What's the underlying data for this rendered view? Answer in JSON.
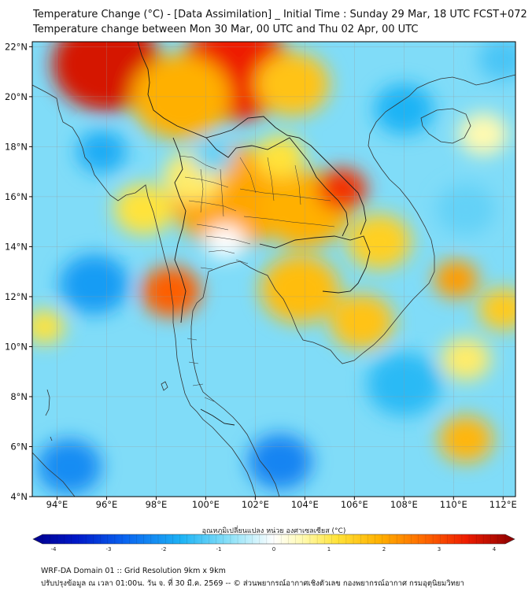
{
  "header": {
    "title_line1": "Temperature Change (°C) - [Data Assimilation] _ Initial Time : Sunday 29 Mar, 18 UTC FCST+072",
    "title_line2": "Temperature change between Mon 30 Mar, 00 UTC and Thu 02 Apr, 00 UTC"
  },
  "footer": {
    "line1": "WRF-DA Domain 01 :: Grid Resolution 9km x 9km",
    "line2": "ปรับปรุงข้อมูล ณ เวลา 01:00น. วัน จ. ที่ 30 มี.ค. 2569 -- © ส่วนพยากรณ์อากาศเชิงตัวเลข กองพยากรณ์อากาศ กรมอุตุนิยมวิทยา"
  },
  "colors": {
    "coast": "#333333",
    "border": "#1a1a1a",
    "grid": "#999999"
  },
  "chart_data": {
    "type": "heatmap",
    "title": "Temperature Change (°C) - [Data Assimilation] _ Initial Time : Sunday 29 Mar, 18 UTC FCST+072",
    "subtitle": "Temperature change between Mon 30 Mar, 00 UTC and Thu 02 Apr, 00 UTC",
    "x_range_lon": [
      93,
      112.5
    ],
    "y_range_lat": [
      4,
      22.2
    ],
    "x_ticks": [
      94,
      96,
      98,
      100,
      102,
      104,
      106,
      108,
      110,
      112
    ],
    "x_tick_labels": [
      "94°E",
      "96°E",
      "98°E",
      "100°E",
      "102°E",
      "104°E",
      "106°E",
      "108°E",
      "110°E",
      "112°E"
    ],
    "y_ticks": [
      4,
      6,
      8,
      10,
      12,
      14,
      16,
      18,
      20,
      22
    ],
    "y_tick_labels": [
      "4°N",
      "6°N",
      "8°N",
      "10°N",
      "12°N",
      "14°N",
      "16°N",
      "18°N",
      "20°N",
      "22°N"
    ],
    "grid": true,
    "colorbar": {
      "label": "อุณหภูมิเปลี่ยนแปลง หน่วย องศาเซลเซียส (°C)",
      "min": -4,
      "max": 4,
      "ticks": [
        -4,
        -3,
        -2,
        -1,
        0,
        1,
        2,
        3,
        4
      ],
      "tick_labels": [
        "-4",
        "-3",
        "-2",
        "-1",
        "0",
        "1",
        "2",
        "3",
        "4"
      ],
      "extend": "both"
    },
    "background_value": -0.8,
    "anomalies": [
      {
        "lon": 96.0,
        "lat": 21.3,
        "value": 3.4,
        "radius_deg": 2.2
      },
      {
        "lon": 101.2,
        "lat": 21.0,
        "value": 3.2,
        "radius_deg": 2.3
      },
      {
        "lon": 99.0,
        "lat": 20.0,
        "value": 1.8,
        "radius_deg": 2.0
      },
      {
        "lon": 103.5,
        "lat": 20.5,
        "value": 1.5,
        "radius_deg": 1.5
      },
      {
        "lon": 101.0,
        "lat": 16.0,
        "value": 1.9,
        "radius_deg": 2.4
      },
      {
        "lon": 104.0,
        "lat": 15.5,
        "value": 1.8,
        "radius_deg": 1.8
      },
      {
        "lon": 105.5,
        "lat": 16.3,
        "value": 3.0,
        "radius_deg": 1.0
      },
      {
        "lon": 103.0,
        "lat": 17.6,
        "value": 1.0,
        "radius_deg": 1.0
      },
      {
        "lon": 99.5,
        "lat": 16.8,
        "value": 0.8,
        "radius_deg": 1.2
      },
      {
        "lon": 97.5,
        "lat": 15.5,
        "value": 1.0,
        "radius_deg": 1.2
      },
      {
        "lon": 98.6,
        "lat": 12.2,
        "value": 2.6,
        "radius_deg": 1.2
      },
      {
        "lon": 103.8,
        "lat": 12.3,
        "value": 1.6,
        "radius_deg": 1.6
      },
      {
        "lon": 106.3,
        "lat": 11.0,
        "value": 1.5,
        "radius_deg": 1.3
      },
      {
        "lon": 107.0,
        "lat": 14.2,
        "value": 1.3,
        "radius_deg": 1.3
      },
      {
        "lon": 110.1,
        "lat": 12.7,
        "value": 2.0,
        "radius_deg": 0.9
      },
      {
        "lon": 100.8,
        "lat": 14.2,
        "value": 0.0,
        "radius_deg": 0.8
      },
      {
        "lon": 100.3,
        "lat": 17.6,
        "value": -1.0,
        "radius_deg": 0.8
      },
      {
        "lon": 93.5,
        "lat": 10.8,
        "value": 1.0,
        "radius_deg": 0.8
      },
      {
        "lon": 110.5,
        "lat": 6.3,
        "value": 1.7,
        "radius_deg": 1.1
      },
      {
        "lon": 112.0,
        "lat": 11.5,
        "value": 1.4,
        "radius_deg": 1.0
      },
      {
        "lon": 110.5,
        "lat": 9.5,
        "value": 0.8,
        "radius_deg": 1.0
      },
      {
        "lon": 111.2,
        "lat": 18.5,
        "value": 0.5,
        "radius_deg": 1.0
      },
      {
        "lon": 103.0,
        "lat": 5.4,
        "value": -2.1,
        "radius_deg": 1.3
      },
      {
        "lon": 94.5,
        "lat": 5.2,
        "value": -2.0,
        "radius_deg": 1.3
      },
      {
        "lon": 95.5,
        "lat": 12.5,
        "value": -1.8,
        "radius_deg": 1.4
      },
      {
        "lon": 95.8,
        "lat": 17.8,
        "value": -1.6,
        "radius_deg": 1.0
      },
      {
        "lon": 108.0,
        "lat": 8.5,
        "value": -1.4,
        "radius_deg": 1.5
      },
      {
        "lon": 110.5,
        "lat": 15.5,
        "value": -1.0,
        "radius_deg": 1.2
      },
      {
        "lon": 108.0,
        "lat": 19.5,
        "value": -1.5,
        "radius_deg": 1.2
      },
      {
        "lon": 112.0,
        "lat": 21.5,
        "value": -1.2,
        "radius_deg": 1.0
      }
    ]
  }
}
